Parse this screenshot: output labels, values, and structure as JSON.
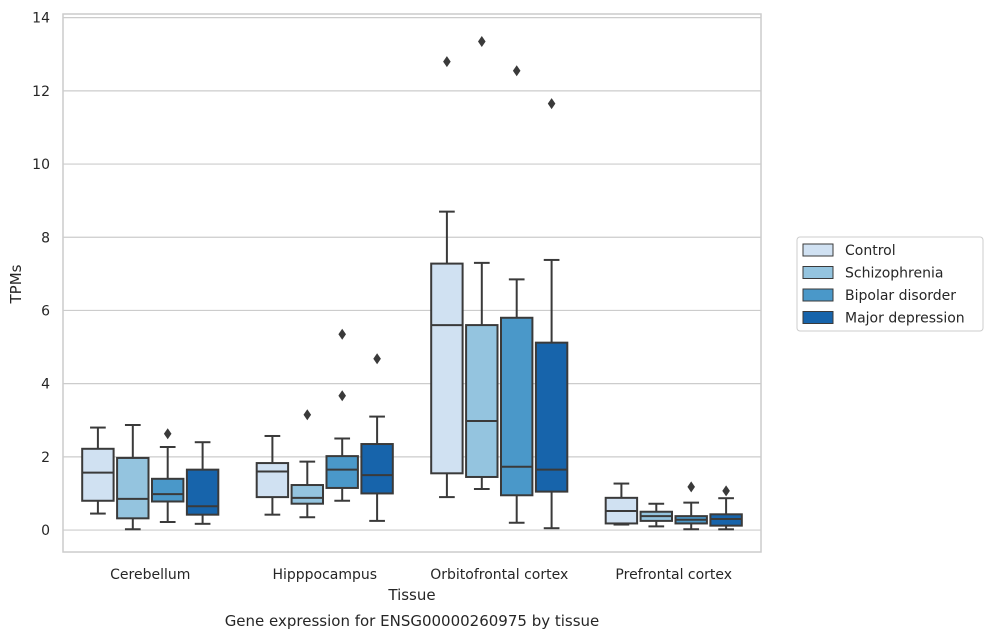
{
  "chart_data": {
    "type": "box",
    "title": "Gene expression for ENSG00000260975 by tissue",
    "xlabel": "Tissue",
    "ylabel": "TPMs",
    "ylim": [
      -0.6,
      14.1
    ],
    "yticks": [
      0,
      2,
      4,
      6,
      8,
      10,
      12,
      14
    ],
    "grid": true,
    "legend_position": "right",
    "categories": [
      "Cerebellum",
      "Hipppocampus",
      "Orbitofrontal cortex",
      "Prefrontal cortex"
    ],
    "series": [
      {
        "name": "Control",
        "color": "#d0e1f2",
        "boxes": [
          {
            "min": 0.45,
            "q1": 0.8,
            "median": 1.57,
            "q3": 2.22,
            "max": 2.8,
            "outliers": []
          },
          {
            "min": 0.42,
            "q1": 0.9,
            "median": 1.6,
            "q3": 1.83,
            "max": 2.57,
            "outliers": []
          },
          {
            "min": 0.9,
            "q1": 1.55,
            "median": 5.6,
            "q3": 7.28,
            "max": 8.7,
            "outliers": [
              12.8
            ]
          },
          {
            "min": 0.15,
            "q1": 0.18,
            "median": 0.52,
            "q3": 0.88,
            "max": 1.27,
            "outliers": []
          }
        ]
      },
      {
        "name": "Schizophrenia",
        "color": "#94c4df",
        "boxes": [
          {
            "min": 0.02,
            "q1": 0.32,
            "median": 0.85,
            "q3": 1.97,
            "max": 2.87,
            "outliers": []
          },
          {
            "min": 0.35,
            "q1": 0.72,
            "median": 0.88,
            "q3": 1.23,
            "max": 1.87,
            "outliers": [
              3.15
            ]
          },
          {
            "min": 1.12,
            "q1": 1.45,
            "median": 2.98,
            "q3": 5.6,
            "max": 7.3,
            "outliers": [
              13.35
            ]
          },
          {
            "min": 0.1,
            "q1": 0.25,
            "median": 0.38,
            "q3": 0.5,
            "max": 0.72,
            "outliers": []
          }
        ]
      },
      {
        "name": "Bipolar disorder",
        "color": "#4a98c9",
        "boxes": [
          {
            "min": 0.22,
            "q1": 0.78,
            "median": 0.98,
            "q3": 1.4,
            "max": 2.27,
            "outliers": [
              2.63
            ]
          },
          {
            "min": 0.8,
            "q1": 1.15,
            "median": 1.65,
            "q3": 2.02,
            "max": 2.5,
            "outliers": [
              5.35,
              3.67
            ]
          },
          {
            "min": 0.2,
            "q1": 0.95,
            "median": 1.73,
            "q3": 5.8,
            "max": 6.85,
            "outliers": [
              12.55
            ]
          },
          {
            "min": 0.02,
            "q1": 0.18,
            "median": 0.28,
            "q3": 0.38,
            "max": 0.75,
            "outliers": [
              1.18
            ]
          }
        ]
      },
      {
        "name": "Major depression",
        "color": "#1764ab",
        "boxes": [
          {
            "min": 0.17,
            "q1": 0.42,
            "median": 0.65,
            "q3": 1.65,
            "max": 2.4,
            "outliers": []
          },
          {
            "min": 0.25,
            "q1": 1.0,
            "median": 1.5,
            "q3": 2.35,
            "max": 3.1,
            "outliers": [
              4.68
            ]
          },
          {
            "min": 0.05,
            "q1": 1.05,
            "median": 1.65,
            "q3": 5.12,
            "max": 7.38,
            "outliers": [
              11.65
            ]
          },
          {
            "min": 0.02,
            "q1": 0.12,
            "median": 0.3,
            "q3": 0.43,
            "max": 0.87,
            "outliers": [
              1.07
            ]
          }
        ]
      }
    ]
  }
}
